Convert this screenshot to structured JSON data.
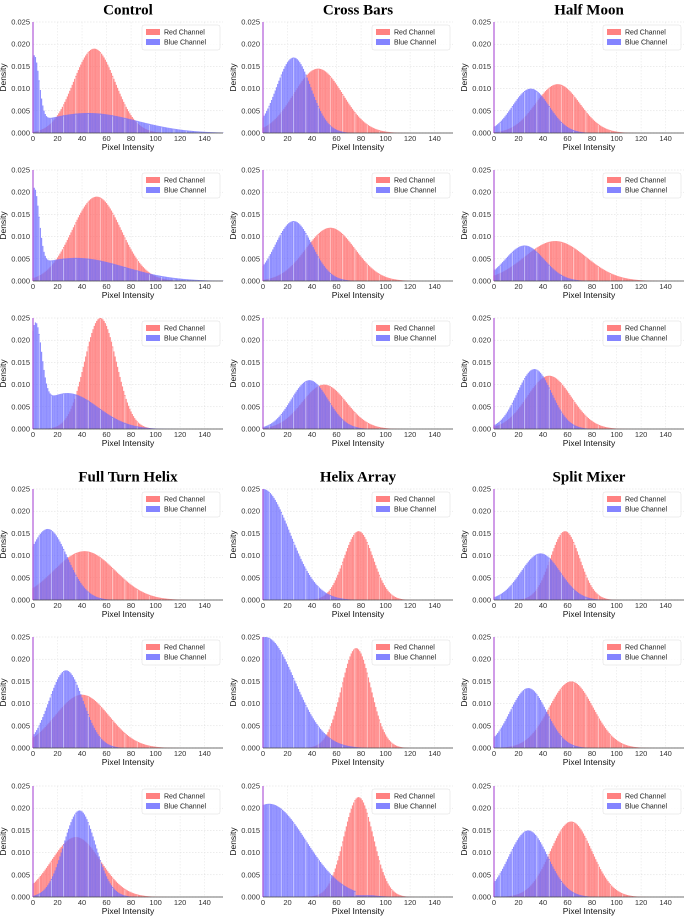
{
  "figure": {
    "group_titles": [
      "Control",
      "Cross Bars",
      "Half Moon",
      "Full Turn Helix",
      "Helix Array",
      "Split Mixer"
    ]
  },
  "chart_data": {
    "type": "histogram",
    "common": {
      "xlabel": "Pixel Intensity",
      "ylabel": "Density",
      "xlim": [
        0,
        155
      ],
      "ylim": [
        0,
        0.025
      ],
      "xticks": [
        0,
        20,
        40,
        60,
        80,
        100,
        120,
        140
      ],
      "yticks": [
        "0.000",
        "0.005",
        "0.010",
        "0.015",
        "0.020",
        "0.025"
      ],
      "grid": true,
      "legend_position": "top-right",
      "series_names": [
        "Red Channel",
        "Blue Channel"
      ],
      "series_colors": [
        "#ff6b6b",
        "#6e6eff"
      ]
    },
    "panels": [
      {
        "group": "Control",
        "row": 1,
        "red": {
          "components": [
            {
              "mu": 50,
              "sigma": 17,
              "w": 1.0
            }
          ],
          "peak": 0.019,
          "xmax": 115
        },
        "blue": {
          "components": [
            {
              "mu": 1,
              "sigma": 4,
              "w": 1.0
            },
            {
              "mu": 45,
              "sigma": 40,
              "w": 0.3
            }
          ],
          "peak": 0.0175,
          "xmax": 155
        }
      },
      {
        "group": "Control",
        "row": 2,
        "red": {
          "components": [
            {
              "mu": 52,
              "sigma": 20,
              "w": 1.0
            }
          ],
          "peak": 0.019,
          "xmax": 125
        },
        "blue": {
          "components": [
            {
              "mu": 1,
              "sigma": 4,
              "w": 1.0
            },
            {
              "mu": 35,
              "sigma": 40,
              "w": 0.3
            }
          ],
          "peak": 0.021,
          "xmax": 155
        }
      },
      {
        "group": "Control",
        "row": 3,
        "red": {
          "components": [
            {
              "mu": 55,
              "sigma": 13,
              "w": 1.0
            }
          ],
          "peak": 0.025,
          "xmax": 125
        },
        "blue": {
          "components": [
            {
              "mu": 2,
              "sigma": 5,
              "w": 1.0
            },
            {
              "mu": 28,
              "sigma": 25,
              "w": 0.42
            }
          ],
          "peak": 0.024,
          "xmax": 125
        }
      },
      {
        "group": "Cross Bars",
        "row": 1,
        "red": {
          "components": [
            {
              "mu": 45,
              "sigma": 20,
              "w": 1.0
            }
          ],
          "peak": 0.0145,
          "xmax": 125
        },
        "blue": {
          "components": [
            {
              "mu": 25,
              "sigma": 14,
              "w": 1.0
            }
          ],
          "peak": 0.017,
          "xmax": 95
        }
      },
      {
        "group": "Cross Bars",
        "row": 2,
        "red": {
          "components": [
            {
              "mu": 55,
              "sigma": 20,
              "w": 1.0
            }
          ],
          "peak": 0.012,
          "xmax": 135
        },
        "blue": {
          "components": [
            {
              "mu": 25,
              "sigma": 15,
              "w": 1.0
            }
          ],
          "peak": 0.0135,
          "xmax": 130
        }
      },
      {
        "group": "Cross Bars",
        "row": 3,
        "red": {
          "components": [
            {
              "mu": 50,
              "sigma": 18,
              "w": 1.0
            }
          ],
          "peak": 0.01,
          "xmax": 125
        },
        "blue": {
          "components": [
            {
              "mu": 38,
              "sigma": 15,
              "w": 1.0
            }
          ],
          "peak": 0.011,
          "xmax": 155
        }
      },
      {
        "group": "Half Moon",
        "row": 1,
        "red": {
          "components": [
            {
              "mu": 52,
              "sigma": 18,
              "w": 1.0
            }
          ],
          "peak": 0.011,
          "xmax": 125
        },
        "blue": {
          "components": [
            {
              "mu": 30,
              "sigma": 15,
              "w": 1.0
            }
          ],
          "peak": 0.01,
          "xmax": 110
        }
      },
      {
        "group": "Half Moon",
        "row": 2,
        "red": {
          "components": [
            {
              "mu": 50,
              "sigma": 25,
              "w": 1.0
            }
          ],
          "peak": 0.009,
          "xmax": 135
        },
        "blue": {
          "components": [
            {
              "mu": 25,
              "sigma": 16,
              "w": 1.0
            }
          ],
          "peak": 0.008,
          "xmax": 155
        }
      },
      {
        "group": "Half Moon",
        "row": 3,
        "red": {
          "components": [
            {
              "mu": 45,
              "sigma": 18,
              "w": 1.0
            }
          ],
          "peak": 0.012,
          "xmax": 125
        },
        "blue": {
          "components": [
            {
              "mu": 33,
              "sigma": 14,
              "w": 1.0
            }
          ],
          "peak": 0.0135,
          "xmax": 90
        }
      },
      {
        "group": "Full Turn Helix",
        "row": 1,
        "red": {
          "components": [
            {
              "mu": 42,
              "sigma": 25,
              "w": 1.0
            }
          ],
          "peak": 0.011,
          "xmax": 130
        },
        "blue": {
          "components": [
            {
              "mu": 12,
              "sigma": 16,
              "w": 1.0
            }
          ],
          "peak": 0.016,
          "xmax": 90
        }
      },
      {
        "group": "Full Turn Helix",
        "row": 2,
        "red": {
          "components": [
            {
              "mu": 40,
              "sigma": 22,
              "w": 1.0
            }
          ],
          "peak": 0.012,
          "xmax": 130
        },
        "blue": {
          "components": [
            {
              "mu": 27,
              "sigma": 14,
              "w": 1.0
            }
          ],
          "peak": 0.0175,
          "xmax": 85
        }
      },
      {
        "group": "Full Turn Helix",
        "row": 3,
        "red": {
          "components": [
            {
              "mu": 35,
              "sigma": 20,
              "w": 1.0
            }
          ],
          "peak": 0.0135,
          "xmax": 110
        },
        "blue": {
          "components": [
            {
              "mu": 38,
              "sigma": 13,
              "w": 1.0
            }
          ],
          "peak": 0.0195,
          "xmax": 95
        }
      },
      {
        "group": "Helix Array",
        "row": 1,
        "red": {
          "components": [
            {
              "mu": 78,
              "sigma": 12,
              "w": 1.0
            }
          ],
          "peak": 0.0155,
          "xmax": 115
        },
        "blue": {
          "components": [
            {
              "mu": 0,
              "sigma": 22,
              "w": 1.0
            }
          ],
          "peak": 0.025,
          "xmax": 90
        }
      },
      {
        "group": "Helix Array",
        "row": 2,
        "red": {
          "components": [
            {
              "mu": 76,
              "sigma": 12,
              "w": 1.0
            }
          ],
          "peak": 0.0225,
          "xmax": 120
        },
        "blue": {
          "components": [
            {
              "mu": 2,
              "sigma": 24,
              "w": 1.0
            }
          ],
          "peak": 0.025,
          "xmax": 75
        }
      },
      {
        "group": "Helix Array",
        "row": 3,
        "red": {
          "components": [
            {
              "mu": 78,
              "sigma": 12,
              "w": 1.0
            }
          ],
          "peak": 0.0225,
          "xmax": 120
        },
        "blue": {
          "components": [
            {
              "mu": 5,
              "sigma": 30,
              "w": 1.0
            }
          ],
          "peak": 0.021,
          "xmax": 75
        }
      },
      {
        "group": "Split Mixer",
        "row": 1,
        "red": {
          "components": [
            {
              "mu": 58,
              "sigma": 12,
              "w": 1.0
            }
          ],
          "peak": 0.0155,
          "xmax": 110
        },
        "blue": {
          "components": [
            {
              "mu": 38,
              "sigma": 16,
              "w": 1.0
            }
          ],
          "peak": 0.0105,
          "xmax": 155
        }
      },
      {
        "group": "Split Mixer",
        "row": 2,
        "red": {
          "components": [
            {
              "mu": 63,
              "sigma": 18,
              "w": 1.0
            }
          ],
          "peak": 0.015,
          "xmax": 125
        },
        "blue": {
          "components": [
            {
              "mu": 28,
              "sigma": 15,
              "w": 1.0
            }
          ],
          "peak": 0.0135,
          "xmax": 100
        }
      },
      {
        "group": "Split Mixer",
        "row": 3,
        "red": {
          "components": [
            {
              "mu": 63,
              "sigma": 17,
              "w": 1.0
            }
          ],
          "peak": 0.017,
          "xmax": 125
        },
        "blue": {
          "components": [
            {
              "mu": 28,
              "sigma": 16,
              "w": 1.0
            }
          ],
          "peak": 0.015,
          "xmax": 130
        }
      }
    ]
  }
}
